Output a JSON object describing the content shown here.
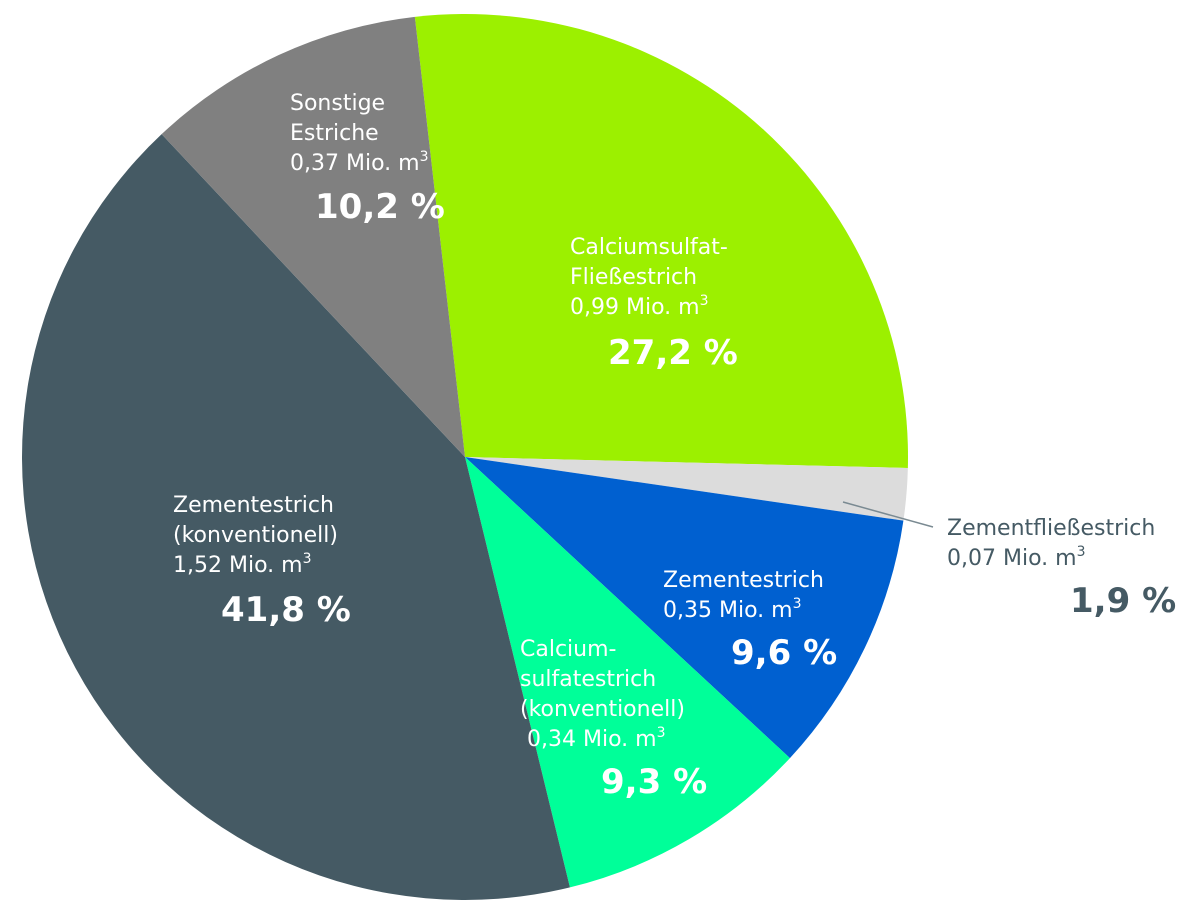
{
  "chart_data": {
    "type": "pie",
    "title": "",
    "unit": "Mio. m³",
    "slices": [
      {
        "key": "calciumsulfat-fliessestrich",
        "name_lines": [
          "Calciumsulfat-",
          "Fließestrich"
        ],
        "amount_text": "0,99 Mio. m",
        "amount_value": 0.99,
        "percent": 27.2,
        "percent_text": "27,2 %",
        "color": "#9cf000",
        "text_color": "#ffffff"
      },
      {
        "key": "zementfliessestrich",
        "name_lines": [
          "Zementfließestrich"
        ],
        "amount_text": "0,07 Mio. m",
        "amount_value": 0.07,
        "percent": 1.9,
        "percent_text": "1,9 %",
        "color": "#dcdcdc",
        "text_color": "#455a64"
      },
      {
        "key": "zementestrich",
        "name_lines": [
          "Zementestrich"
        ],
        "amount_text": "0,35 Mio. m",
        "amount_value": 0.35,
        "percent": 9.6,
        "percent_text": "9,6 %",
        "color": "#0060d0",
        "text_color": "#ffffff"
      },
      {
        "key": "calciumsulfatestrich-konventionell",
        "name_lines": [
          "Calcium-",
          "sulfatestrich",
          "(konventionell)"
        ],
        "amount_text": "0,34 Mio. m",
        "amount_value": 0.34,
        "percent": 9.3,
        "percent_text": "9,3 %",
        "color": "#00ff99",
        "text_color": "#ffffff"
      },
      {
        "key": "zementestrich-konventionell",
        "name_lines": [
          "Zementestrich",
          "(konventionell)"
        ],
        "amount_text": "1,52 Mio. m",
        "amount_value": 1.52,
        "percent": 41.8,
        "percent_text": "41,8 %",
        "color": "#455a64",
        "text_color": "#ffffff"
      },
      {
        "key": "sonstige-estriche",
        "name_lines": [
          "Sonstige",
          "Estriche"
        ],
        "amount_text": "0,37 Mio. m",
        "amount_value": 0.37,
        "percent": 10.2,
        "percent_text": "10,2 %",
        "color": "#808080",
        "text_color": "#ffffff"
      }
    ],
    "superscript": "3"
  }
}
